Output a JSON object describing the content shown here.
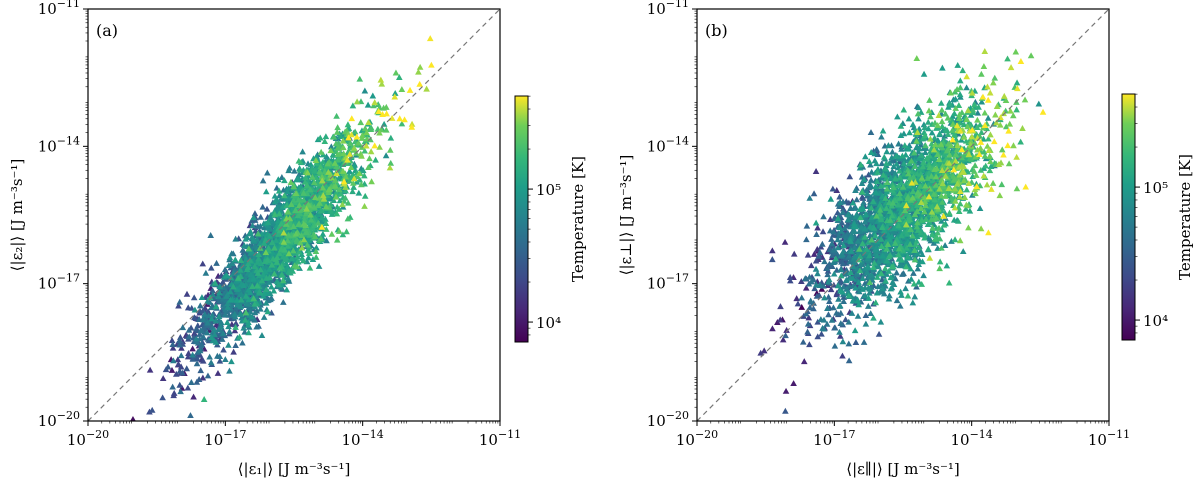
{
  "chart_data": [
    {
      "type": "scatter",
      "panel_label": "(a)",
      "xlabel": "⟨|ε₁|⟩ [J m⁻³s⁻¹]",
      "ylabel": "⟨|ε₂|⟩ [J m⁻³s⁻¹]",
      "xscale": "log",
      "yscale": "log",
      "xlim_exp": [
        -20,
        -11
      ],
      "ylim_exp": [
        -20,
        -11
      ],
      "x_ticks": [
        {
          "exp": -20,
          "label": "10−20"
        },
        {
          "exp": -17,
          "label": "10−17"
        },
        {
          "exp": -14,
          "label": "10−14"
        },
        {
          "exp": -11,
          "label": "10−11"
        }
      ],
      "y_ticks": [
        {
          "exp": -20,
          "label": "10−20"
        },
        {
          "exp": -17,
          "label": "10−17"
        },
        {
          "exp": -14,
          "label": "10−14"
        },
        {
          "exp": -11,
          "label": "10−11"
        }
      ],
      "reference_line": "y = x (dashed)",
      "marker": "triangle",
      "color_variable": "Temperature [K]",
      "clim_log10": [
        3.85,
        5.7
      ],
      "point_cloud": {
        "n": 2600,
        "seed": 11,
        "x_log10_center": -15.8,
        "x_log10_spread": 0.95,
        "slope": 1.15,
        "y_intercept_shift": 2.1,
        "scatter_log10": 0.5,
        "x_log10_range": [
          -19.8,
          -11.9
        ]
      }
    },
    {
      "type": "scatter",
      "panel_label": "(b)",
      "xlabel": "⟨|ε∥|⟩ [J m⁻³s⁻¹]",
      "ylabel": "⟨|ε⊥|⟩ [J m⁻³s⁻¹]",
      "xscale": "log",
      "yscale": "log",
      "xlim_exp": [
        -20,
        -11
      ],
      "ylim_exp": [
        -20,
        -11
      ],
      "x_ticks": [
        {
          "exp": -20,
          "label": "10−20"
        },
        {
          "exp": -17,
          "label": "10−17"
        },
        {
          "exp": -14,
          "label": "10−14"
        },
        {
          "exp": -11,
          "label": "10−11"
        }
      ],
      "y_ticks": [
        {
          "exp": -20,
          "label": "10−20"
        },
        {
          "exp": -17,
          "label": "10−17"
        },
        {
          "exp": -14,
          "label": "10−14"
        },
        {
          "exp": -11,
          "label": "10−11"
        }
      ],
      "reference_line": "y = x (dashed)",
      "marker": "triangle",
      "color_variable": "Temperature [K]",
      "clim_log10": [
        3.85,
        5.7
      ],
      "point_cloud": {
        "n": 2600,
        "seed": 29,
        "x_log10_center": -15.5,
        "x_log10_spread": 0.95,
        "slope": 0.85,
        "y_intercept_shift": -2.2,
        "scatter_log10": 0.75,
        "x_log10_range": [
          -19.6,
          -11.8
        ]
      }
    }
  ],
  "colorbars": [
    {
      "title": "Temperature [K]",
      "ticks": [
        {
          "exp": 4,
          "label": "10⁴"
        },
        {
          "exp": 5,
          "label": "10⁵"
        }
      ],
      "range_log10": [
        3.85,
        5.7
      ],
      "colormap": "viridis"
    },
    {
      "title": "Temperature [K]",
      "ticks": [
        {
          "exp": 4,
          "label": "10⁴"
        },
        {
          "exp": 5,
          "label": "10⁵"
        }
      ],
      "range_log10": [
        3.85,
        5.7
      ],
      "colormap": "viridis"
    }
  ]
}
